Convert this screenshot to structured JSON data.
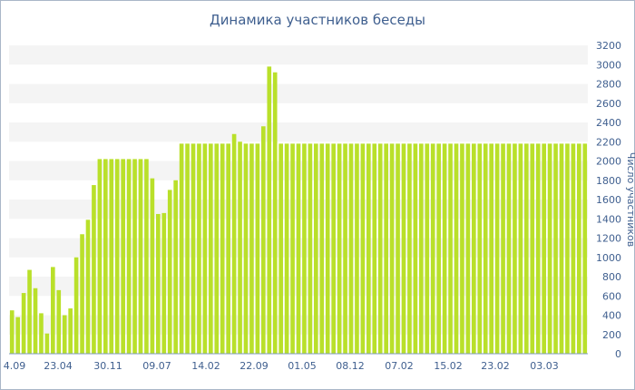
{
  "chart_data": {
    "type": "bar",
    "title": "Динамика участников беседы",
    "ylabel": "Число участников",
    "ylim": [
      0,
      3200
    ],
    "yticks": [
      0,
      200,
      400,
      600,
      800,
      1000,
      1200,
      1400,
      1600,
      1800,
      2000,
      2200,
      2400,
      2600,
      2800,
      3000,
      3200
    ],
    "xtick_labels": [
      "4.09",
      "23.04",
      "30.11",
      "09.07",
      "14.02",
      "22.09",
      "01.05",
      "08.12",
      "07.02",
      "15.02",
      "23.02",
      "03.03"
    ],
    "y_axis_position": "right",
    "grid": "horizontal bands",
    "bar_color": "#b9e02a",
    "values": [
      450,
      380,
      630,
      870,
      680,
      420,
      210,
      900,
      660,
      400,
      470,
      1000,
      1240,
      1390,
      1750,
      2020,
      2020,
      2020,
      2020,
      2020,
      2020,
      2020,
      2020,
      2020,
      1820,
      1450,
      1460,
      1700,
      1800,
      2180,
      2180,
      2180,
      2180,
      2180,
      2180,
      2180,
      2180,
      2180,
      2280,
      2200,
      2180,
      2180,
      2180,
      2360,
      2980,
      2920,
      2180,
      2180,
      2180,
      2180,
      2180,
      2180,
      2180,
      2180,
      2180,
      2180,
      2180,
      2180,
      2180,
      2180,
      2180,
      2180,
      2180,
      2180,
      2180,
      2180,
      2180,
      2180,
      2180,
      2180,
      2180,
      2180,
      2180,
      2180,
      2180,
      2180,
      2180,
      2180,
      2180,
      2180,
      2180,
      2180,
      2180,
      2180,
      2180,
      2180,
      2180,
      2180,
      2180,
      2180,
      2180,
      2180,
      2180,
      2180,
      2180,
      2180,
      2180,
      2180,
      2180
    ]
  }
}
